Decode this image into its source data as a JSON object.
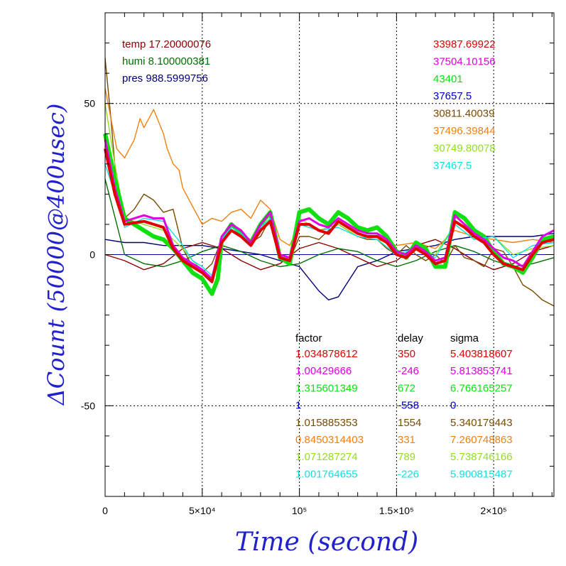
{
  "chart_data": {
    "type": "line",
    "xlabel": "Time (second)",
    "ylabel": "ΔCount (50000@400usec)",
    "xlim": [
      0,
      231000
    ],
    "ylim": [
      -80,
      80
    ],
    "grid": true,
    "x_ticks": [
      {
        "v": 0,
        "label": "0"
      },
      {
        "v": 50000,
        "label": "5×10⁴"
      },
      {
        "v": 100000,
        "label": "10⁵"
      },
      {
        "v": 150000,
        "label": "1.5×10⁵"
      },
      {
        "v": 200000,
        "label": "2×10⁵"
      }
    ],
    "y_ticks": [
      {
        "v": 50,
        "label": "50"
      },
      {
        "v": 0,
        "label": "0"
      },
      {
        "v": -50,
        "label": "-50"
      }
    ],
    "env_labels": [
      {
        "text": "temp 17.20000076",
        "color": "#8b0000"
      },
      {
        "text": "humi 8.100000381",
        "color": "#007000"
      },
      {
        "text": "pres 988.5999756",
        "color": "#00007a"
      }
    ],
    "means": [
      {
        "text": "33987.69922",
        "color": "#e00000"
      },
      {
        "text": "37504.10156",
        "color": "#e000e0"
      },
      {
        "text": "43401",
        "color": "#10e010"
      },
      {
        "text": "37657.5",
        "color": "#0000c0"
      },
      {
        "text": "30811.40039",
        "color": "#7a4a00"
      },
      {
        "text": "37496.39844",
        "color": "#f08010"
      },
      {
        "text": "30749.80078",
        "color": "#90e020"
      },
      {
        "text": "37467.5",
        "color": "#10e0e0"
      }
    ],
    "table": {
      "headers": [
        "factor",
        "delay",
        "sigma"
      ],
      "rows": [
        {
          "factor": "1.034878612",
          "delay": "350",
          "sigma": "5.403818607",
          "color": "#e00000"
        },
        {
          "factor": "1.00429666",
          "delay": "-246",
          "sigma": "5.813853741",
          "color": "#e000e0"
        },
        {
          "factor": "1.315601349",
          "delay": "672",
          "sigma": "6.766165257",
          "color": "#10e010"
        },
        {
          "factor": "1",
          "delay": "-558",
          "sigma": "0",
          "color": "#0000c0"
        },
        {
          "factor": "1.015885353",
          "delay": "1554",
          "sigma": "5.340179443",
          "color": "#7a4a00"
        },
        {
          "factor": "0.8450314403",
          "delay": "331",
          "sigma": "7.260748863",
          "color": "#f08010"
        },
        {
          "factor": "1.071287274",
          "delay": "789",
          "sigma": "5.738746166",
          "color": "#90e020"
        },
        {
          "factor": "1.001764655",
          "delay": "-226",
          "sigma": "5.900815487",
          "color": "#10e0e0"
        }
      ]
    },
    "series": [
      {
        "color": "#00007a",
        "x": [
          0,
          10000,
          20000,
          30000,
          40000,
          50000,
          60000,
          70000,
          80000,
          90000,
          100000,
          105000,
          110000,
          115000,
          120000,
          125000,
          130000,
          140000,
          150000,
          160000,
          170000,
          180000,
          190000,
          200000,
          210000,
          220000,
          231000
        ],
        "y": [
          5,
          4,
          4,
          3,
          3,
          3,
          2,
          1,
          0,
          -2,
          -4,
          -8,
          -12,
          -15,
          -14,
          -9,
          -4,
          -2,
          1,
          2,
          3,
          5,
          6,
          6,
          6,
          6,
          7
        ]
      },
      {
        "color": "#8b0000",
        "x": [
          0,
          10000,
          20000,
          30000,
          40000,
          50000,
          60000,
          70000,
          80000,
          90000,
          100000,
          110000,
          120000,
          130000,
          140000,
          150000,
          160000,
          170000,
          180000,
          190000,
          200000,
          210000,
          220000,
          231000
        ],
        "y": [
          0,
          -2,
          -5,
          -3,
          2,
          4,
          2,
          -2,
          -5,
          -3,
          2,
          4,
          2,
          -1,
          -4,
          -2,
          3,
          5,
          2,
          -2,
          -5,
          -3,
          1,
          3
        ]
      },
      {
        "color": "#007000",
        "x": [
          0,
          10000,
          20000,
          30000,
          40000,
          50000,
          60000,
          70000,
          80000,
          90000,
          100000,
          110000,
          120000,
          130000,
          140000,
          150000,
          160000,
          170000,
          180000,
          190000,
          200000,
          210000,
          220000,
          231000
        ],
        "y": [
          25,
          0,
          -3,
          -4,
          -2,
          1,
          3,
          1,
          -2,
          -4,
          -3,
          0,
          2,
          1,
          -2,
          -4,
          -2,
          1,
          3,
          1,
          -2,
          -4,
          -3,
          -1
        ]
      },
      {
        "color": "#7a4a00",
        "x": [
          0,
          3000,
          6000,
          10000,
          15000,
          20000,
          25000,
          30000,
          35000,
          40000,
          45000,
          50000,
          55000,
          60000,
          65000,
          70000,
          75000,
          80000,
          85000,
          90000,
          95000,
          100000,
          105000,
          110000,
          115000,
          120000,
          125000,
          130000,
          135000,
          140000,
          145000,
          150000,
          155000,
          160000,
          165000,
          170000,
          175000,
          180000,
          185000,
          190000,
          195000,
          200000,
          205000,
          210000,
          215000,
          220000,
          225000,
          231000
        ],
        "y": [
          65,
          45,
          22,
          12,
          15,
          20,
          18,
          14,
          15,
          2,
          -4,
          -6,
          -3,
          5,
          10,
          8,
          4,
          6,
          12,
          0,
          -2,
          6,
          6,
          5,
          8,
          10,
          8,
          6,
          5,
          5,
          2,
          0,
          3,
          0,
          -2,
          0,
          -3,
          3,
          -1,
          -2,
          -4,
          2,
          1,
          -4,
          -10,
          -12,
          -15,
          -17
        ]
      },
      {
        "color": "#f08010",
        "x": [
          0,
          3000,
          6000,
          10000,
          15000,
          18000,
          20000,
          25000,
          30000,
          32000,
          35000,
          38000,
          40000,
          45000,
          50000,
          55000,
          60000,
          65000,
          70000,
          75000,
          80000,
          85000,
          90000,
          95000,
          100000,
          110000,
          120000,
          130000,
          140000,
          150000,
          160000,
          170000,
          180000,
          190000,
          200000,
          210000,
          220000,
          231000
        ],
        "y": [
          55,
          45,
          35,
          32,
          38,
          45,
          42,
          48,
          40,
          35,
          30,
          28,
          22,
          16,
          10,
          12,
          11,
          14,
          15,
          12,
          18,
          15,
          5,
          3,
          10,
          8,
          10,
          6,
          5,
          3,
          4,
          2,
          8,
          6,
          5,
          4,
          5,
          4
        ]
      },
      {
        "color": "#90e020",
        "x": [
          0,
          5000,
          10000,
          20000,
          30000,
          40000,
          45000,
          50000,
          55000,
          60000,
          65000,
          70000,
          75000,
          80000,
          85000,
          90000,
          95000,
          100000,
          110000,
          120000,
          130000,
          140000,
          150000,
          160000,
          170000,
          180000,
          190000,
          200000,
          210000,
          220000,
          231000
        ],
        "y": [
          50,
          30,
          12,
          10,
          8,
          2,
          -2,
          -5,
          -8,
          5,
          8,
          6,
          3,
          8,
          12,
          0,
          -2,
          12,
          8,
          10,
          6,
          5,
          0,
          2,
          0,
          10,
          5,
          6,
          0,
          2,
          3
        ]
      },
      {
        "color": "#10e010",
        "x": [
          0,
          5000,
          10000,
          20000,
          25000,
          30000,
          35000,
          40000,
          45000,
          50000,
          55000,
          58000,
          60000,
          65000,
          70000,
          75000,
          80000,
          85000,
          90000,
          95000,
          100000,
          105000,
          110000,
          115000,
          120000,
          125000,
          130000,
          135000,
          140000,
          145000,
          150000,
          155000,
          160000,
          165000,
          170000,
          175000,
          180000,
          185000,
          190000,
          195000,
          200000,
          205000,
          210000,
          215000,
          220000,
          225000,
          231000
        ],
        "y": [
          40,
          25,
          12,
          8,
          6,
          5,
          2,
          -2,
          -6,
          -8,
          -13,
          -8,
          5,
          10,
          7,
          4,
          10,
          14,
          -1,
          -3,
          14,
          15,
          12,
          10,
          14,
          12,
          9,
          8,
          9,
          6,
          1,
          -1,
          4,
          2,
          -4,
          -4,
          14,
          12,
          8,
          6,
          1,
          -3,
          -4,
          -6,
          -1,
          5,
          6
        ]
      },
      {
        "color": "#10e0e0",
        "x": [
          0,
          5000,
          10000,
          20000,
          30000,
          40000,
          45000,
          50000,
          55000,
          60000,
          65000,
          70000,
          75000,
          80000,
          85000,
          90000,
          95000,
          100000,
          110000,
          120000,
          130000,
          140000,
          150000,
          160000,
          170000,
          180000,
          190000,
          200000,
          210000,
          220000,
          231000
        ],
        "y": [
          30,
          20,
          9,
          12,
          11,
          3,
          -2,
          -4,
          -7,
          5,
          9,
          7,
          4,
          9,
          12,
          0,
          -1,
          10,
          8,
          9,
          6,
          5,
          0,
          2,
          -1,
          10,
          5,
          6,
          -1,
          3,
          4
        ]
      },
      {
        "color": "#e000e0",
        "x": [
          0,
          5000,
          10000,
          20000,
          25000,
          30000,
          35000,
          40000,
          45000,
          50000,
          55000,
          60000,
          65000,
          70000,
          75000,
          80000,
          85000,
          90000,
          95000,
          100000,
          105000,
          110000,
          115000,
          120000,
          125000,
          130000,
          135000,
          140000,
          145000,
          150000,
          155000,
          160000,
          165000,
          170000,
          175000,
          180000,
          185000,
          190000,
          195000,
          200000,
          205000,
          210000,
          215000,
          220000,
          225000,
          231000
        ],
        "y": [
          38,
          22,
          11,
          13,
          12,
          12,
          3,
          -1,
          -3,
          -5,
          -8,
          6,
          10,
          8,
          4,
          10,
          14,
          0,
          -1,
          11,
          12,
          10,
          9,
          12,
          10,
          8,
          7,
          7,
          5,
          1,
          0,
          3,
          1,
          -2,
          -1,
          13,
          10,
          7,
          5,
          2,
          -1,
          -2,
          -4,
          1,
          6,
          8
        ]
      },
      {
        "color": "#e00000",
        "x": [
          0,
          5000,
          10000,
          20000,
          25000,
          30000,
          35000,
          40000,
          45000,
          50000,
          55000,
          60000,
          65000,
          70000,
          75000,
          80000,
          85000,
          90000,
          95000,
          100000,
          105000,
          110000,
          115000,
          120000,
          125000,
          130000,
          135000,
          140000,
          145000,
          150000,
          155000,
          160000,
          165000,
          170000,
          175000,
          180000,
          185000,
          190000,
          195000,
          200000,
          205000,
          210000,
          215000,
          220000,
          225000,
          231000
        ],
        "y": [
          35,
          20,
          10,
          11,
          10,
          9,
          2,
          -2,
          -4,
          -6,
          -9,
          4,
          8,
          6,
          3,
          8,
          11,
          -1,
          -2,
          10,
          10,
          8,
          7,
          11,
          9,
          7,
          6,
          6,
          4,
          0,
          -1,
          2,
          0,
          -3,
          -2,
          11,
          9,
          6,
          4,
          0,
          -3,
          -4,
          -5,
          0,
          4,
          5
        ]
      }
    ]
  }
}
